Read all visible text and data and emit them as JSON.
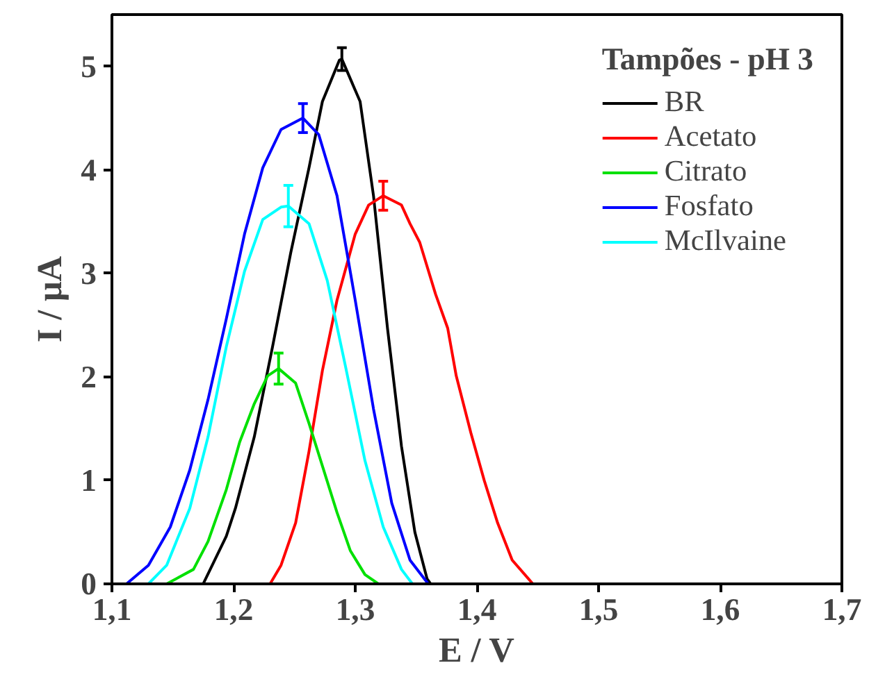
{
  "chart_data": {
    "type": "line",
    "xlabel": "E / V",
    "ylabel": "I / μA",
    "legend_title": "Tampões - pH 3",
    "legend": "top right",
    "grid": false,
    "marker": "none",
    "line_style": "solid",
    "xlim": [
      1.1,
      1.7
    ],
    "ylim": [
      0,
      5.5
    ],
    "xticks": [
      {
        "value": 1.1,
        "label": "1,1"
      },
      {
        "value": 1.2,
        "label": "1,2"
      },
      {
        "value": 1.3,
        "label": "1,3"
      },
      {
        "value": 1.4,
        "label": "1,4"
      },
      {
        "value": 1.5,
        "label": "1,5"
      },
      {
        "value": 1.6,
        "label": "1,6"
      },
      {
        "value": 1.7,
        "label": "1,7"
      }
    ],
    "yticks": [
      0,
      1,
      2,
      3,
      4,
      5
    ],
    "series": [
      {
        "name": "BR",
        "color": "#000000",
        "x": [
          1.175,
          1.194,
          1.2015,
          1.217,
          1.232,
          1.247,
          1.262,
          1.273,
          1.287,
          1.289,
          1.304,
          1.315,
          1.3265,
          1.338,
          1.349,
          1.359,
          1.362
        ],
        "values": [
          0,
          0.46,
          0.73,
          1.42,
          2.29,
          3.2,
          4.02,
          4.66,
          5.06,
          5.07,
          4.66,
          3.75,
          2.47,
          1.33,
          0.5,
          0.05,
          0
        ],
        "errors": [
          null,
          null,
          null,
          null,
          null,
          null,
          null,
          null,
          null,
          0.11,
          null,
          null,
          null,
          null,
          null,
          null,
          null
        ]
      },
      {
        "name": "Acetato",
        "color": "#ff0000",
        "x": [
          1.23,
          1.239,
          1.251,
          1.262,
          1.273,
          1.285,
          1.3,
          1.311,
          1.323,
          1.338,
          1.345,
          1.353,
          1.366,
          1.376,
          1.383,
          1.395,
          1.406,
          1.417,
          1.429,
          1.446
        ],
        "values": [
          0,
          0.18,
          0.59,
          1.28,
          2.06,
          2.74,
          3.38,
          3.66,
          3.75,
          3.66,
          3.48,
          3.3,
          2.8,
          2.47,
          2.01,
          1.46,
          1.0,
          0.59,
          0.23,
          0
        ],
        "errors": [
          null,
          null,
          null,
          null,
          null,
          null,
          null,
          null,
          0.14,
          null,
          null,
          null,
          null,
          null,
          null,
          null,
          null,
          null,
          null,
          null
        ]
      },
      {
        "name": "Citrato",
        "color": "#00e000",
        "x": [
          1.145,
          1.167,
          1.179,
          1.194,
          1.205,
          1.217,
          1.228,
          1.237,
          1.251,
          1.262,
          1.273,
          1.285,
          1.296,
          1.308,
          1.319
        ],
        "values": [
          0,
          0.14,
          0.41,
          0.91,
          1.37,
          1.74,
          2.01,
          2.08,
          1.94,
          1.55,
          1.14,
          0.69,
          0.32,
          0.09,
          0
        ],
        "errors": [
          null,
          null,
          null,
          null,
          null,
          null,
          null,
          0.15,
          null,
          null,
          null,
          null,
          null,
          null,
          null
        ]
      },
      {
        "name": "Fosfato",
        "color": "#0000ff",
        "x": [
          1.112,
          1.13,
          1.148,
          1.164,
          1.179,
          1.194,
          1.209,
          1.224,
          1.239,
          1.257,
          1.27,
          1.285,
          1.3,
          1.315,
          1.33,
          1.345,
          1.36
        ],
        "values": [
          0,
          0.18,
          0.55,
          1.1,
          1.78,
          2.56,
          3.38,
          4.02,
          4.39,
          4.5,
          4.34,
          3.75,
          2.74,
          1.69,
          0.78,
          0.23,
          0
        ],
        "errors": [
          null,
          null,
          null,
          null,
          null,
          null,
          null,
          null,
          null,
          0.14,
          null,
          null,
          null,
          null,
          null,
          null,
          null
        ]
      },
      {
        "name": "McIlvaine",
        "color": "#00ffff",
        "x": [
          1.13,
          1.145,
          1.164,
          1.179,
          1.194,
          1.209,
          1.224,
          1.239,
          1.245,
          1.262,
          1.277,
          1.292,
          1.308,
          1.323,
          1.338,
          1.347
        ],
        "values": [
          0,
          0.18,
          0.73,
          1.42,
          2.29,
          3.02,
          3.52,
          3.64,
          3.65,
          3.48,
          2.93,
          2.1,
          1.19,
          0.55,
          0.14,
          0
        ],
        "errors": [
          null,
          null,
          null,
          null,
          null,
          null,
          null,
          null,
          0.2,
          null,
          null,
          null,
          null,
          null,
          null,
          null
        ]
      }
    ]
  }
}
